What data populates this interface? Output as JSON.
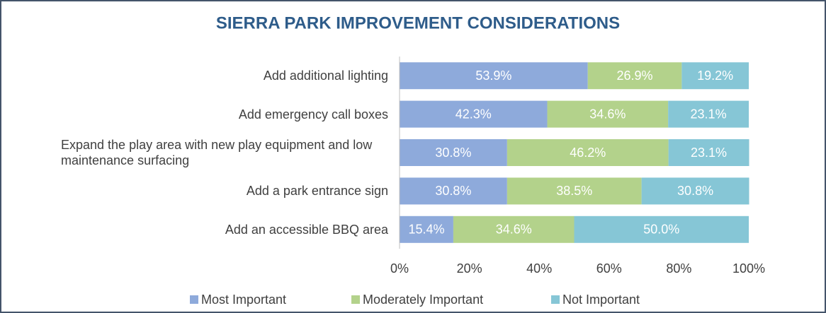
{
  "chart_data": {
    "type": "stacked_barh",
    "title": "SIERRA PARK IMPROVEMENT CONSIDERATIONS",
    "categories": [
      "Add additional lighting",
      "Add emergency call boxes",
      "Expand the play area with new play equipment and low maintenance surfacing",
      "Add a park entrance sign",
      "Add an accessible BBQ area"
    ],
    "series": [
      {
        "name": "Most Important",
        "color": "#8eaadb",
        "values": [
          53.9,
          42.3,
          30.8,
          30.8,
          15.4
        ],
        "value_labels": [
          "53.9%",
          "42.3%",
          "30.8%",
          "30.8%",
          "15.4%"
        ]
      },
      {
        "name": "Moderately Important",
        "color": "#b3d28b",
        "values": [
          26.9,
          34.6,
          46.2,
          38.5,
          34.6
        ],
        "value_labels": [
          "26.9%",
          "34.6%",
          "46.2%",
          "38.5%",
          "34.6%"
        ]
      },
      {
        "name": "Not Important",
        "color": "#86c6d6",
        "values": [
          19.2,
          23.1,
          23.1,
          30.8,
          50.0
        ],
        "value_labels": [
          "19.2%",
          "23.1%",
          "23.1%",
          "30.8%",
          "50.0%"
        ]
      }
    ],
    "xlim": [
      0,
      100
    ],
    "xticks": [
      {
        "value": 0,
        "label": "0%"
      },
      {
        "value": 20,
        "label": "20%"
      },
      {
        "value": 40,
        "label": "40%"
      },
      {
        "value": 60,
        "label": "60%"
      },
      {
        "value": 80,
        "label": "80%"
      },
      {
        "value": 100,
        "label": "100%"
      }
    ],
    "grid": false,
    "legend": "bottom"
  }
}
